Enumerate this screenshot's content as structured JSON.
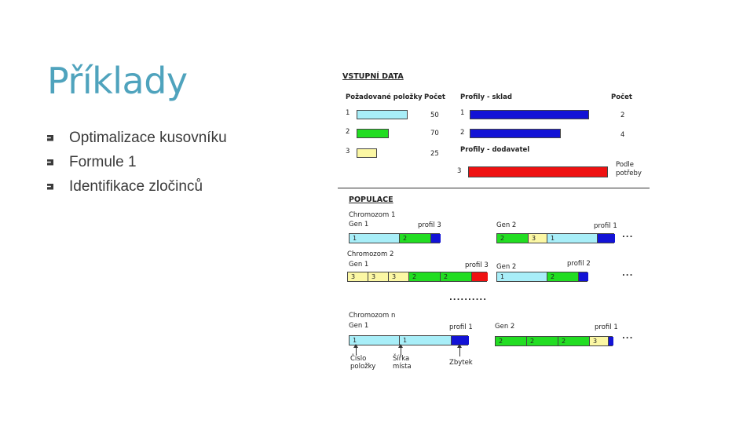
{
  "slide": {
    "title": "Příklady",
    "bullets": [
      "Optimalizace kusovníku",
      "Formule 1",
      "Identifikace zločinců"
    ]
  },
  "figure": {
    "input_header": "VSTUPNÍ DATA",
    "col_required": "Požadované položky",
    "col_count1": "Počet",
    "col_profiles_stock": "Profily - sklad",
    "col_count2": "Počet",
    "req": [
      {
        "id": "1",
        "count": "50"
      },
      {
        "id": "2",
        "count": "70"
      },
      {
        "id": "3",
        "count": "25"
      }
    ],
    "stock": [
      {
        "id": "1",
        "count": "2"
      },
      {
        "id": "2",
        "count": "4"
      }
    ],
    "supplier_header": "Profily - dodavatel",
    "supplier_id": "3",
    "supplier_note_1": "Podle",
    "supplier_note_2": "potřeby",
    "population_header": "POPULACE",
    "chrom1": "Chromozom 1",
    "chrom2": "Chromozom 2",
    "chromn": "Chromozom n",
    "gen1": "Gen 1",
    "gen2": "Gen 2",
    "profil1": "profil 1",
    "profil2": "profil 2",
    "profil3": "profil 3",
    "c1g1_cells": [
      "1",
      "2"
    ],
    "c1g2_cells": [
      "2",
      "3",
      "1"
    ],
    "c1g2_profile": "profil 1",
    "c2g1_cells": [
      "3",
      "3",
      "3",
      "2",
      "2"
    ],
    "c2g2_cells": [
      "1",
      "2"
    ],
    "cng1_cells": [
      "1",
      "1"
    ],
    "cng2_cells": [
      "2",
      "2",
      "2",
      "3"
    ],
    "ellipsis": "...",
    "middots": "..........",
    "arrow_label_1a": "Číslo",
    "arrow_label_1b": "položky",
    "arrow_label_2a": "Šířka",
    "arrow_label_2b": "místa",
    "arrow_label_3": "Zbytek",
    "colors": {
      "cyan": "#a8eef8",
      "green": "#22dd22",
      "yellow": "#fbf7a4",
      "blue": "#1313d6",
      "red": "#ef1111",
      "title": "#4fa3bd"
    }
  }
}
